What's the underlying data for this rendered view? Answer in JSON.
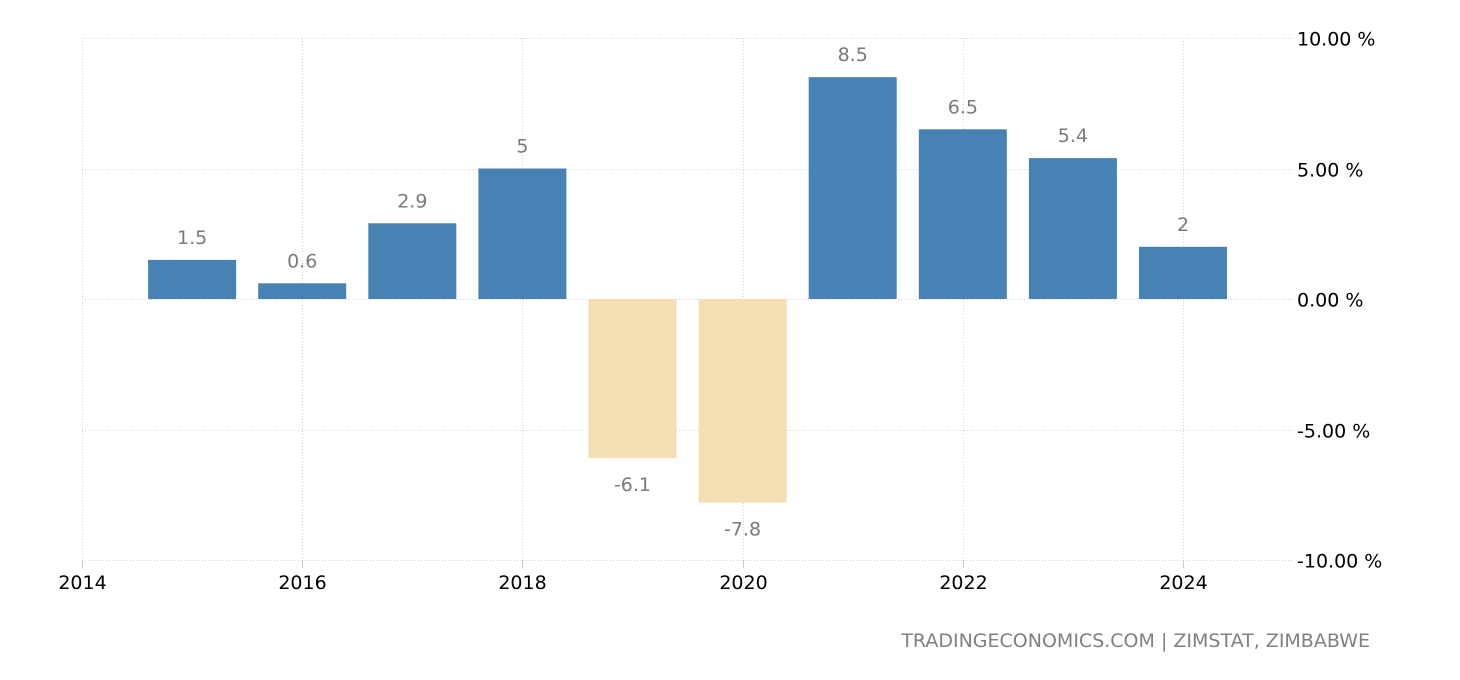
{
  "chart_data": {
    "type": "bar",
    "title": "",
    "xlabel": "",
    "ylabel": "",
    "categories": [
      "2015",
      "2016",
      "2017",
      "2018",
      "2019",
      "2020",
      "2021",
      "2022",
      "2023",
      "2024"
    ],
    "values": [
      1.5,
      0.6,
      2.9,
      5,
      -6.1,
      -7.8,
      8.5,
      6.5,
      5.4,
      2
    ],
    "data_labels": [
      "1.5",
      "0.6",
      "2.9",
      "5",
      "-6.1",
      "-7.8",
      "8.5",
      "6.5",
      "5.4",
      "2"
    ],
    "xlim": [
      2014,
      2025
    ],
    "ylim": [
      -10,
      10
    ],
    "x_ticks": [
      2014,
      2016,
      2018,
      2020,
      2022,
      2024
    ],
    "x_tick_labels": [
      "2014",
      "2016",
      "2018",
      "2020",
      "2022",
      "2024"
    ],
    "y_ticks": [
      10,
      5,
      0,
      -5,
      -10
    ],
    "y_tick_labels": [
      "10.00 %",
      "5.00 %",
      "0.00 %",
      "-5.00 %",
      "-10.00 %"
    ],
    "y_axis_position": "right",
    "grid": true,
    "legend": null,
    "colors": {
      "positive": "#4682b4",
      "negative": "#f5deb3",
      "grid": "#d0d0d0",
      "data_label": "#7a7a7a"
    }
  },
  "source": "TRADINGECONOMICS.COM | ZIMSTAT, ZIMBABWE"
}
